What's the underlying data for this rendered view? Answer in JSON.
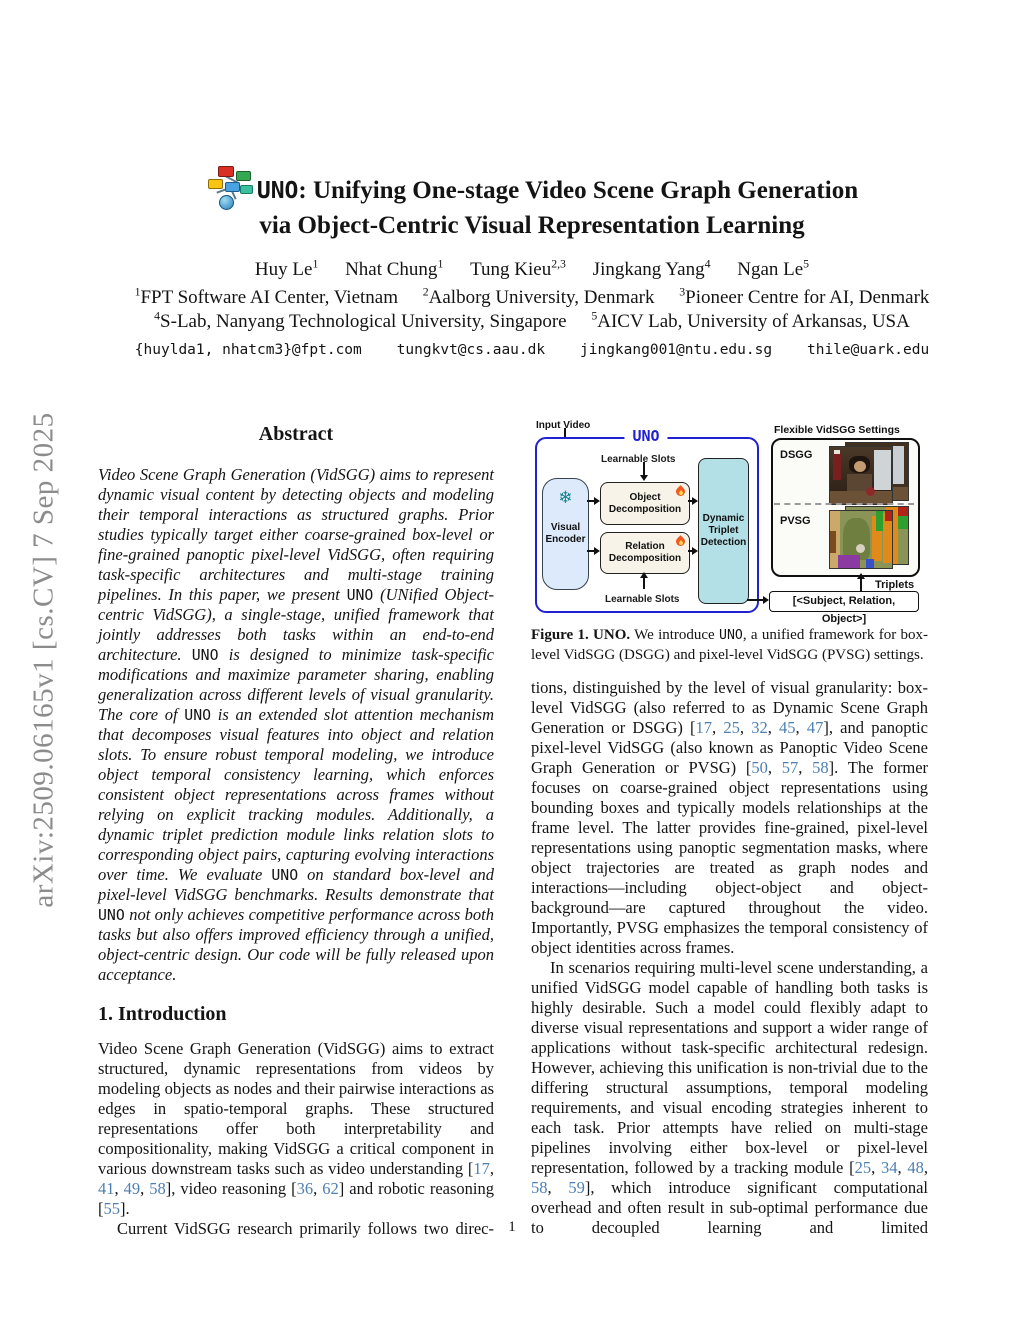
{
  "arxiv_banner": "arXiv:2509.06165v1  [cs.CV]  7 Sep 2025",
  "title": {
    "line1_uno": "UNO",
    "line1_rest": ": Unifying One-stage Video Scene Graph Generation",
    "line2": "via Object-Centric Visual Representation Learning"
  },
  "authors": [
    {
      "name": "Huy Le",
      "sup": "1"
    },
    {
      "name": "Nhat Chung",
      "sup": "1"
    },
    {
      "name": "Tung Kieu",
      "sup": "2,3"
    },
    {
      "name": "Jingkang Yang",
      "sup": "4"
    },
    {
      "name": "Ngan Le",
      "sup": "5"
    }
  ],
  "affiliations_line1": [
    {
      "sup": "1",
      "text": "FPT Software AI Center, Vietnam"
    },
    {
      "sup": "2",
      "text": "Aalborg University, Denmark"
    },
    {
      "sup": "3",
      "text": "Pioneer Centre for AI, Denmark"
    }
  ],
  "affiliations_line2": [
    {
      "sup": "4",
      "text": "S-Lab, Nanyang Technological University, Singapore"
    },
    {
      "sup": "5",
      "text": "AICV Lab, University of Arkansas, USA"
    }
  ],
  "emails": "{huylda1, nhatcm3}@fpt.com    tungkvt@cs.aau.dk    jingkang001@ntu.edu.sg    thile@uark.edu",
  "abstract": {
    "heading": "Abstract",
    "runs": [
      {
        "t": "Video Scene Graph Generation (VidSGG) aims to represent dynamic visual content by detecting objects and modeling their temporal interactions as structured graphs. Prior studies typically target either coarse-grained box-level or fine-grained panoptic pixel-level VidSGG, often requiring task-specific architectures and multi-stage training pipelines. In this paper, we present "
      },
      {
        "t": "UNO",
        "s": "tt"
      },
      {
        "t": " (UNified Object-centric VidSGG), a single-stage, unified framework that jointly addresses both tasks within an end-to-end architecture. "
      },
      {
        "t": "UNO",
        "s": "tt"
      },
      {
        "t": " is designed to minimize task-specific modifications and maximize parameter sharing, enabling generalization across different levels of visual granularity. The core of "
      },
      {
        "t": "UNO",
        "s": "tt"
      },
      {
        "t": " is an extended slot attention mechanism that decomposes visual features into object and relation slots. To ensure robust temporal modeling, we introduce object temporal consistency learning, which enforces consistent object representations across frames without relying on explicit tracking modules. Additionally, a dynamic triplet prediction module links relation slots to corresponding object pairs, capturing evolving interactions over time. We evaluate "
      },
      {
        "t": "UNO",
        "s": "tt"
      },
      {
        "t": " on standard box-level and pixel-level VidSGG benchmarks. Results demonstrate that "
      },
      {
        "t": "UNO",
        "s": "tt"
      },
      {
        "t": " not only achieves competitive performance across both tasks but also offers improved efficiency through a unified, object-centric design. Our code will be fully released upon acceptance."
      }
    ]
  },
  "figure": {
    "labels": {
      "input_video": "Input Video",
      "uno": "UNO",
      "learnable_slots_top": "Learnable Slots",
      "learnable_slots_bottom": "Learnable Slots",
      "visual_encoder": "Visual Encoder",
      "object_decomposition": "Object Decomposition",
      "relation_decomposition": "Relation Decomposition",
      "dynamic_triplet_detection": "Dynamic Triplet Detection",
      "flexible_settings": "Flexible VidSGG Settings",
      "dsgg": "DSGG",
      "pvsg": "PVSG",
      "triplets": "Triplets",
      "triplet_box": "[<Subject, Relation, Object>]"
    },
    "icons": {
      "snowflake": "❄",
      "flame": "flame-icon"
    },
    "colors": {
      "frame_blue": "#2121cf",
      "encoder_fill": "#dceafb",
      "decomp_fill": "#f7f3e8",
      "dtd_fill": "#b2e0e6",
      "snowflake_teal": "#16808c",
      "flame_orange": "#f05a1e"
    },
    "caption_runs": [
      {
        "t": "Figure 1. UNO.",
        "s": "b"
      },
      {
        "t": " We introduce "
      },
      {
        "t": "UNO",
        "s": "tt"
      },
      {
        "t": ", a unified framework for box-level VidSGG (DSGG) and pixel-level VidSGG (PVSG) settings."
      }
    ]
  },
  "intro": {
    "heading": "1. Introduction",
    "p1_runs": [
      {
        "t": "Video Scene Graph Generation (VidSGG) aims to extract structured, dynamic representations from videos by modeling objects as nodes and their pairwise interactions as edges in spatio-temporal graphs.  These structured representations offer both interpretability and compositionality, making VidSGG a critical component in various downstream tasks such as video understanding ["
      },
      {
        "t": "17",
        "s": "cite"
      },
      {
        "t": ", "
      },
      {
        "t": "41",
        "s": "cite"
      },
      {
        "t": ", "
      },
      {
        "t": "49",
        "s": "cite"
      },
      {
        "t": ", "
      },
      {
        "t": "58",
        "s": "cite"
      },
      {
        "t": "], video reasoning ["
      },
      {
        "t": "36",
        "s": "cite"
      },
      {
        "t": ", "
      },
      {
        "t": "62",
        "s": "cite"
      },
      {
        "t": "] and robotic reasoning ["
      },
      {
        "t": "55",
        "s": "cite"
      },
      {
        "t": "]."
      }
    ],
    "p2_runs": [
      {
        "t": "Current VidSGG research primarily follows two direc-"
      }
    ]
  },
  "right_column": {
    "p1_runs": [
      {
        "t": "tions, distinguished by the level of visual granularity: box-level VidSGG (also referred to as Dynamic Scene Graph Generation or DSGG) ["
      },
      {
        "t": "17",
        "s": "cite"
      },
      {
        "t": ", "
      },
      {
        "t": "25",
        "s": "cite"
      },
      {
        "t": ", "
      },
      {
        "t": "32",
        "s": "cite"
      },
      {
        "t": ", "
      },
      {
        "t": "45",
        "s": "cite"
      },
      {
        "t": ", "
      },
      {
        "t": "47",
        "s": "cite"
      },
      {
        "t": "], and panoptic pixel-level VidSGG (also known as Panoptic Video Scene Graph Generation or PVSG) ["
      },
      {
        "t": "50",
        "s": "cite"
      },
      {
        "t": ", "
      },
      {
        "t": "57",
        "s": "cite"
      },
      {
        "t": ", "
      },
      {
        "t": "58",
        "s": "cite"
      },
      {
        "t": "]. The former focuses on coarse-grained object representations using bounding boxes and typically models relationships at the frame level. The latter provides fine-grained, pixel-level representations using panoptic segmentation masks, where object trajectories are treated as graph nodes and interactions—including object-object and object-background—are captured throughout the video. Importantly, PVSG emphasizes the temporal consistency of object identities across frames."
      }
    ],
    "p2_runs": [
      {
        "t": "In scenarios requiring multi-level scene understanding, a unified VidSGG model capable of handling both tasks is highly desirable.  Such a model could flexibly adapt to diverse visual representations and support a wider range of applications without task-specific architectural redesign. However, achieving this unification is non-trivial due to the differing structural assumptions, temporal modeling requirements, and visual encoding strategies inherent to each task. Prior attempts have relied on multi-stage pipelines involving either box-level or pixel-level representation, followed by a tracking module ["
      },
      {
        "t": "25",
        "s": "cite"
      },
      {
        "t": ", "
      },
      {
        "t": "34",
        "s": "cite"
      },
      {
        "t": ", "
      },
      {
        "t": "48",
        "s": "cite"
      },
      {
        "t": ", "
      },
      {
        "t": "58",
        "s": "cite"
      },
      {
        "t": ", "
      },
      {
        "t": "59",
        "s": "cite"
      },
      {
        "t": "], which introduce significant computational overhead and often result in sub-optimal performance due to decoupled learning and limited"
      }
    ]
  },
  "page_number": "1",
  "text_colors": {
    "body": "#141414",
    "citation": "#4d7fb3",
    "arxiv_gray": "#8c8c8c"
  }
}
